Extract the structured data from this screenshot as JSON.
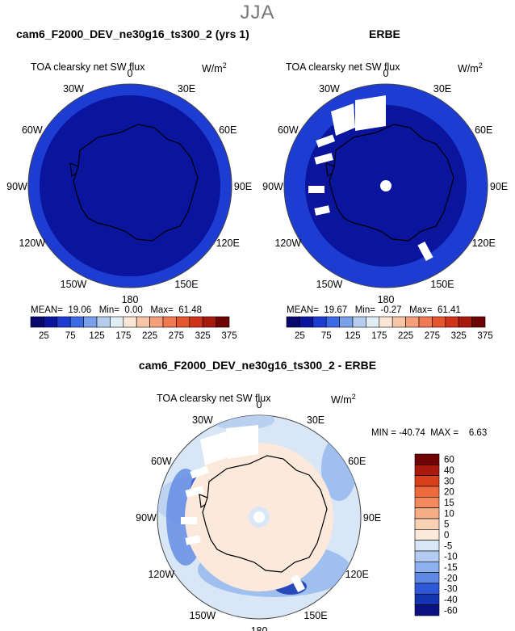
{
  "page": {
    "season": "JJA"
  },
  "panels": [
    {
      "title": "cam6_F2000_DEV_ne30g16_ts300_2 (yrs 1)",
      "variable": "TOA clearsky net SW flux",
      "units": "W/m",
      "units_exp": "2",
      "stats": {
        "mean_label": "MEAN=",
        "mean": "19.06",
        "min_label": "Min=",
        "min": "0.00",
        "max_label": "Max=",
        "max": "61.48"
      }
    },
    {
      "title": "ERBE",
      "variable": "TOA clearsky net SW flux",
      "units": "W/m",
      "units_exp": "2",
      "stats": {
        "mean_label": "MEAN=",
        "mean": "19.67",
        "min_label": "Min=",
        "min": "-0.27",
        "max_label": "Max=",
        "max": "61.41"
      }
    },
    {
      "title": "cam6_F2000_DEV_ne30g16_ts300_2 - ERBE",
      "variable": "TOA clearsky net SW flux",
      "units": "W/m",
      "units_exp": "2",
      "stats": {
        "min_label": "MIN =",
        "min": "-40.74",
        "max_label": "MAX =",
        "max": "6.63"
      }
    }
  ],
  "lon_labels": [
    "0",
    "30E",
    "60E",
    "90E",
    "120E",
    "150E",
    "180",
    "150W",
    "120W",
    "90W",
    "60W",
    "30W"
  ],
  "colorbar_abs": {
    "ticks": [
      "25",
      "75",
      "125",
      "175",
      "225",
      "275",
      "325",
      "375"
    ],
    "colors": [
      "#08086c",
      "#0a149c",
      "#1c3cd2",
      "#3d6be6",
      "#7aa0ea",
      "#b7cdee",
      "#e2eef6",
      "#fbe6d6",
      "#f8c5a6",
      "#f5a07a",
      "#f07a52",
      "#e6562e",
      "#cf3418",
      "#a81a0e",
      "#6e0404"
    ]
  },
  "colorbar_diff": {
    "labels": [
      "60",
      "40",
      "30",
      "20",
      "15",
      "10",
      "5",
      "0",
      "-5",
      "-10",
      "-15",
      "-20",
      "-30",
      "-40",
      "-60"
    ],
    "colors": [
      "#6e0404",
      "#a81a0e",
      "#d8401c",
      "#ee6a3c",
      "#f38a5e",
      "#f5ad86",
      "#f9d2b6",
      "#fbe9dc",
      "#d8e6f6",
      "#b2cbef",
      "#8cb1ec",
      "#5e88e4",
      "#2d58d8",
      "#1434b0",
      "#0a1284"
    ]
  },
  "chart_data": [
    {
      "type": "polar_contour",
      "title": "cam6_F2000_DEV_ne30g16_ts300_2 (yrs 1)",
      "field": "TOA clearsky net SW flux",
      "units": "W/m^2",
      "region": "South Polar stereographic",
      "mean": 19.06,
      "min": 0.0,
      "max": 61.48,
      "levels": [
        25,
        50,
        75,
        100,
        125,
        150,
        175,
        200,
        225,
        250,
        275,
        300,
        325,
        350,
        375
      ]
    },
    {
      "type": "polar_contour",
      "title": "ERBE",
      "field": "TOA clearsky net SW flux",
      "units": "W/m^2",
      "region": "South Polar stereographic",
      "mean": 19.67,
      "min": -0.27,
      "max": 61.41,
      "levels": [
        25,
        50,
        75,
        100,
        125,
        150,
        175,
        200,
        225,
        250,
        275,
        300,
        325,
        350,
        375
      ]
    },
    {
      "type": "polar_contour",
      "title": "cam6_F2000_DEV_ne30g16_ts300_2 - ERBE",
      "field": "TOA clearsky net SW flux",
      "units": "W/m^2",
      "region": "South Polar stereographic",
      "min": -40.74,
      "max": 6.63,
      "levels": [
        -60,
        -40,
        -30,
        -20,
        -15,
        -10,
        -5,
        0,
        5,
        10,
        15,
        20,
        30,
        40,
        60
      ]
    }
  ]
}
